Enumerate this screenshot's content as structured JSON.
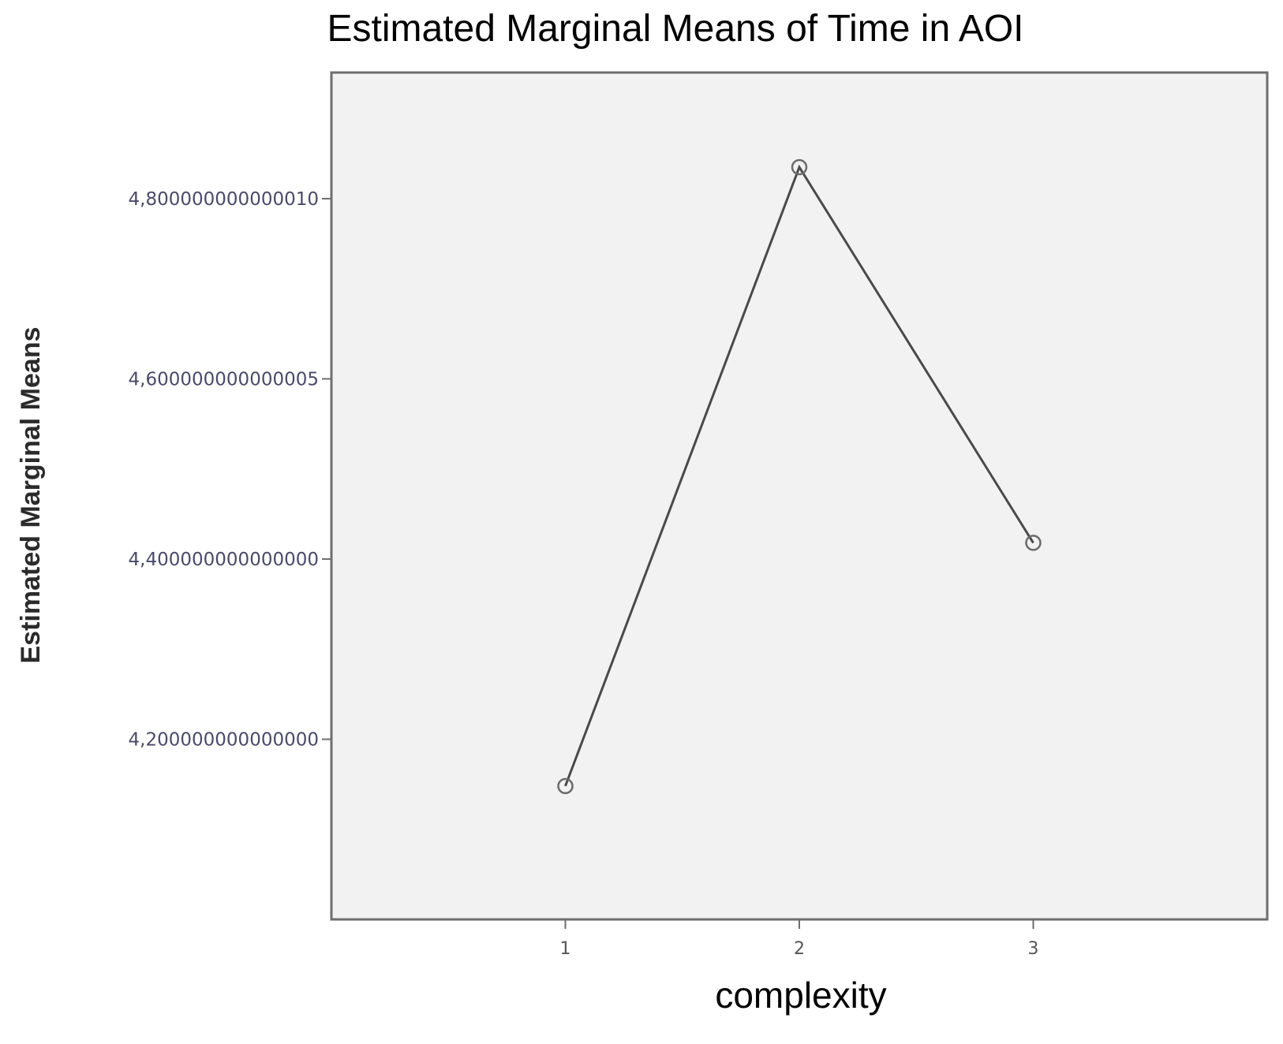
{
  "chart_data": {
    "type": "line",
    "title": "Estimated Marginal Means of Time in AOI",
    "xlabel": "complexity",
    "ylabel": "Estimated Marginal Means",
    "categories": [
      "1",
      "2",
      "3"
    ],
    "series": [
      {
        "values": [
          4.148,
          4.835,
          4.418
        ]
      }
    ],
    "y_ticks": [
      {
        "value": 4.2,
        "label": "4,200000000000000"
      },
      {
        "value": 4.4,
        "label": "4,400000000000000"
      },
      {
        "value": 4.6,
        "label": "4,600000000000005"
      },
      {
        "value": 4.8,
        "label": "4,800000000000010"
      }
    ],
    "ylim": [
      4.0,
      4.94
    ],
    "grid": false,
    "legend": "none",
    "colors": {
      "plot_background": "#f2f2f2",
      "frame": "#6e6e6e",
      "line": "#4a4a4a",
      "marker": "#6a6a6a"
    }
  }
}
